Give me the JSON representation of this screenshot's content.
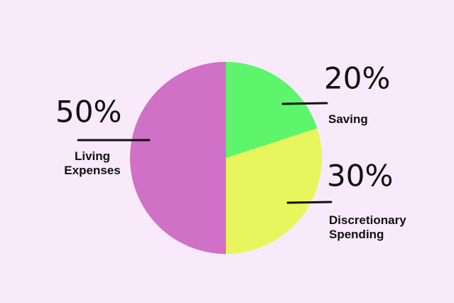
{
  "chart_data": {
    "type": "pie",
    "categories": [
      "Saving",
      "Discretionary Spending",
      "Living Expenses"
    ],
    "values": [
      20,
      30,
      50
    ],
    "value_labels": [
      "20%",
      "30%",
      "50%"
    ],
    "colors": [
      "#5ef56c",
      "#e8f55c",
      "#d070c6"
    ]
  }
}
